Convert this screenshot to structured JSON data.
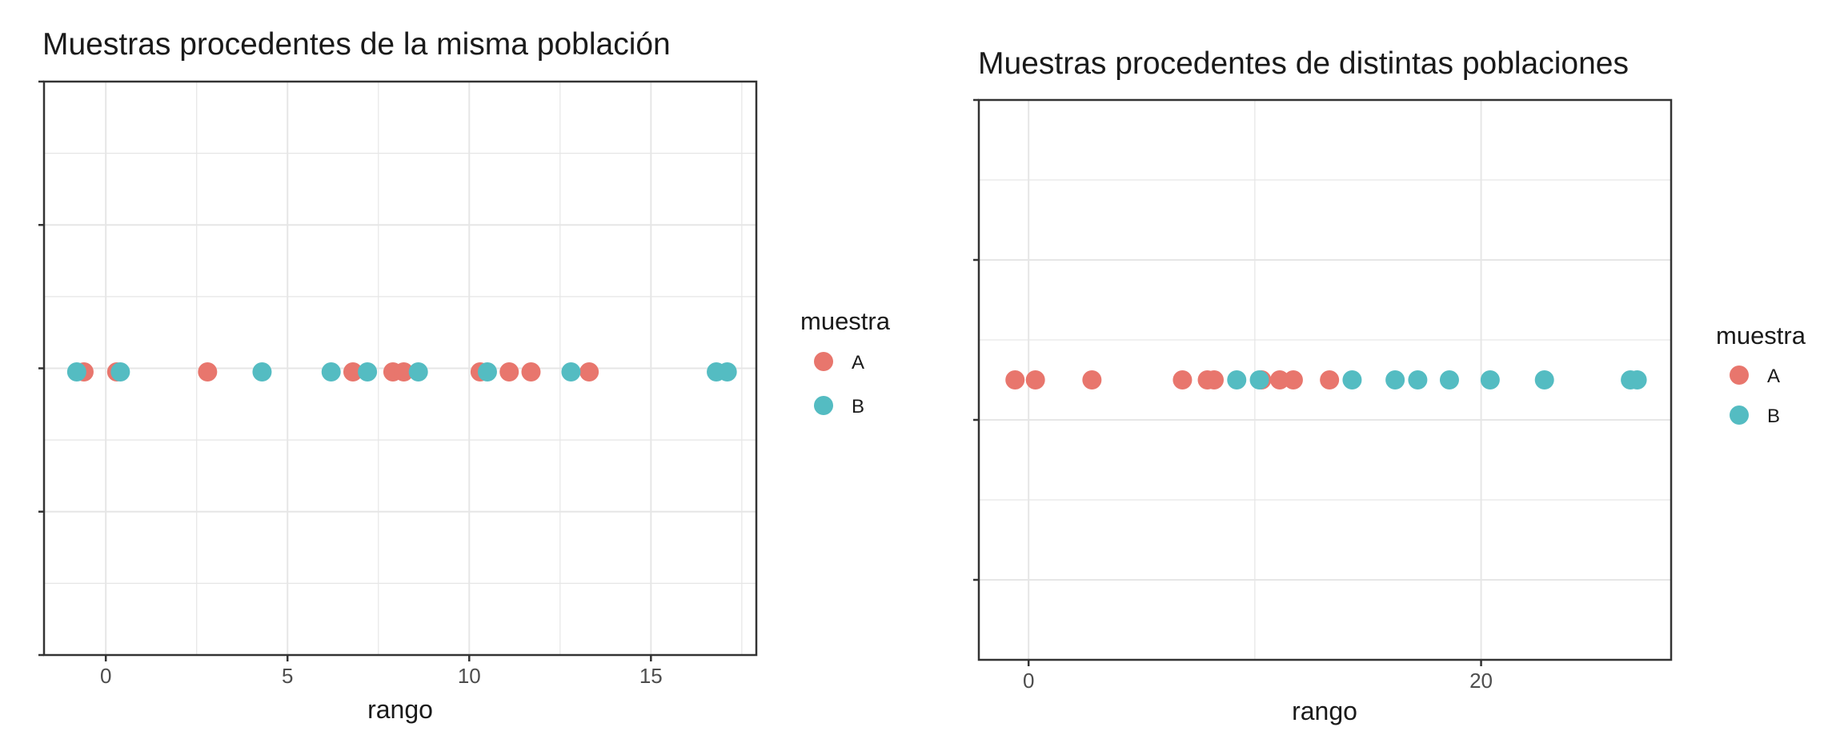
{
  "colors": {
    "A": "#E8766D",
    "B": "#54BCC2",
    "grid": "#e6e6e6",
    "frame": "#333333"
  },
  "chart_data": [
    {
      "type": "scatter",
      "title": "Muestras procedentes de la misma población",
      "xlabel": "rango",
      "ylabel": "",
      "xlim": [
        -1.7,
        17.9
      ],
      "xticks": [
        0,
        5,
        10,
        15
      ],
      "grid": true,
      "legend": {
        "title": "muestra",
        "position": "right",
        "entries": [
          "A",
          "B"
        ]
      },
      "series": [
        {
          "name": "A",
          "x": [
            -0.6,
            0.3,
            2.8,
            6.8,
            7.9,
            8.2,
            10.3,
            11.1,
            11.7,
            13.3
          ]
        },
        {
          "name": "B",
          "x": [
            -0.8,
            0.4,
            4.3,
            6.2,
            7.2,
            8.6,
            10.5,
            12.8,
            16.8,
            17.1
          ]
        }
      ]
    },
    {
      "type": "scatter",
      "title": "Muestras procedentes de distintas poblaciones",
      "xlabel": "rango",
      "ylabel": "",
      "xlim": [
        -2.2,
        28.4
      ],
      "xticks": [
        0,
        20
      ],
      "grid": true,
      "legend": {
        "title": "muestra",
        "position": "right",
        "entries": [
          "A",
          "B"
        ]
      },
      "series": [
        {
          "name": "A",
          "x": [
            -0.6,
            0.3,
            2.8,
            6.8,
            7.9,
            8.2,
            10.3,
            11.1,
            11.7,
            13.3
          ]
        },
        {
          "name": "B",
          "x": [
            9.2,
            10.2,
            14.3,
            16.2,
            17.2,
            18.6,
            20.4,
            22.8,
            26.6,
            26.9
          ]
        }
      ]
    }
  ]
}
